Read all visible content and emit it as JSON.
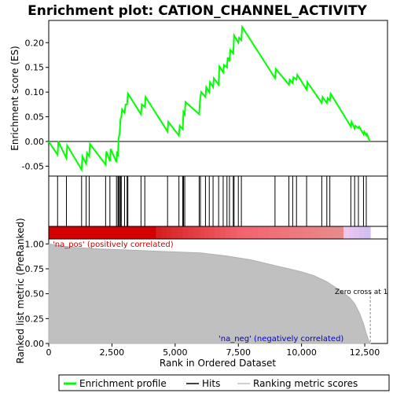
{
  "chart_data": {
    "type": "line",
    "title": "Enrichment plot: CATION_CHANNEL_ACTIVITY",
    "top_panel": {
      "ylabel": "Enrichment score (ES)",
      "yticks": [
        "0.20",
        "0.15",
        "0.10",
        "0.05",
        "0.00",
        "-0.05"
      ],
      "ylim": [
        -0.07,
        0.245
      ],
      "series": [
        {
          "name": "Enrichment profile",
          "color": "#00ff00",
          "x": [
            0,
            350,
            380,
            700,
            730,
            1300,
            1330,
            1480,
            1510,
            1600,
            1630,
            2250,
            2280,
            2420,
            2450,
            2680,
            2700,
            2740,
            2760,
            2800,
            2840,
            2870,
            2900,
            3000,
            3040,
            3100,
            3130,
            3650,
            3680,
            3800,
            3830,
            4700,
            4730,
            5150,
            5180,
            5300,
            5330,
            5380,
            5410,
            5950,
            5980,
            6000,
            6030,
            6200,
            6230,
            6350,
            6380,
            6500,
            6530,
            6720,
            6750,
            6900,
            6930,
            7050,
            7080,
            7150,
            7180,
            7300,
            7330,
            7500,
            7530,
            7620,
            7650,
            8950,
            8980,
            9500,
            9530,
            9650,
            9680,
            9800,
            9830,
            10200,
            10230,
            10800,
            10830,
            11000,
            11030,
            11120,
            11150,
            11950,
            11980,
            12100,
            12130,
            12250,
            12280,
            12450,
            12480,
            12560,
            12590,
            12700
          ],
          "y": [
            0.0,
            -0.027,
            0.0,
            -0.034,
            -0.008,
            -0.057,
            -0.03,
            -0.045,
            -0.023,
            -0.03,
            -0.005,
            -0.047,
            -0.02,
            -0.04,
            -0.015,
            -0.042,
            -0.02,
            -0.03,
            0.005,
            0.015,
            0.045,
            0.05,
            0.065,
            0.058,
            0.075,
            0.075,
            0.097,
            0.055,
            0.075,
            0.07,
            0.09,
            0.02,
            0.04,
            0.012,
            0.032,
            0.025,
            0.06,
            0.055,
            0.08,
            0.055,
            0.08,
            0.09,
            0.1,
            0.09,
            0.11,
            0.1,
            0.12,
            0.11,
            0.128,
            0.115,
            0.152,
            0.14,
            0.155,
            0.15,
            0.17,
            0.162,
            0.185,
            0.178,
            0.215,
            0.2,
            0.21,
            0.205,
            0.232,
            0.128,
            0.147,
            0.115,
            0.125,
            0.118,
            0.13,
            0.125,
            0.135,
            0.105,
            0.12,
            0.078,
            0.09,
            0.078,
            0.088,
            0.083,
            0.097,
            0.03,
            0.04,
            0.026,
            0.032,
            0.027,
            0.03,
            0.015,
            0.02,
            0.012,
            0.015,
            0.0
          ]
        }
      ]
    },
    "hits_panel": {
      "series_name": "Hits",
      "positions": [
        350,
        700,
        1300,
        1480,
        1600,
        2250,
        2420,
        2680,
        2740,
        2760,
        2800,
        2840,
        2870,
        3000,
        3100,
        3130,
        3650,
        3800,
        4700,
        5150,
        5300,
        5330,
        5380,
        5950,
        6000,
        6200,
        6350,
        6500,
        6720,
        6900,
        7050,
        7150,
        7300,
        7330,
        7500,
        7620,
        8950,
        9500,
        9650,
        9800,
        10200,
        10800,
        11000,
        11120,
        11950,
        12100,
        12250,
        12450,
        12560
      ]
    },
    "ranking_panel": {
      "ylabel": "Ranked list metric (PreRanked)",
      "xlabel": "Rank in Ordered Dataset",
      "yticks": [
        "1.00",
        "0.75",
        "0.50",
        "0.25",
        "0.00"
      ],
      "xticks": [
        "0",
        "2,500",
        "5,000",
        "7,500",
        "10,000",
        "12,500"
      ],
      "xlim": [
        0,
        13400
      ],
      "ylim": [
        0,
        1.05
      ],
      "series_name": "Ranking metric scores",
      "x": [
        0,
        500,
        1000,
        2000,
        3000,
        4000,
        5000,
        6000,
        7000,
        8000,
        9000,
        9500,
        10000,
        10500,
        11000,
        11300,
        11600,
        11900,
        12100,
        12300,
        12450,
        12560,
        12650,
        12720
      ],
      "y": [
        1.0,
        0.98,
        0.965,
        0.95,
        0.94,
        0.93,
        0.92,
        0.91,
        0.88,
        0.84,
        0.78,
        0.75,
        0.72,
        0.68,
        0.62,
        0.57,
        0.52,
        0.46,
        0.4,
        0.3,
        0.2,
        0.1,
        0.03,
        0.0
      ],
      "label_pos": "'na_pos' (positively correlated)",
      "label_neg": "'na_neg' (negatively correlated)",
      "zero_cross": "Zero cross at 1"
    },
    "legend": {
      "items": [
        {
          "label": "Enrichment profile",
          "color": "#00ff00"
        },
        {
          "label": "Hits",
          "color": "#000000"
        },
        {
          "label": "Ranking metric scores",
          "color": "#c0c0c0"
        }
      ]
    }
  }
}
